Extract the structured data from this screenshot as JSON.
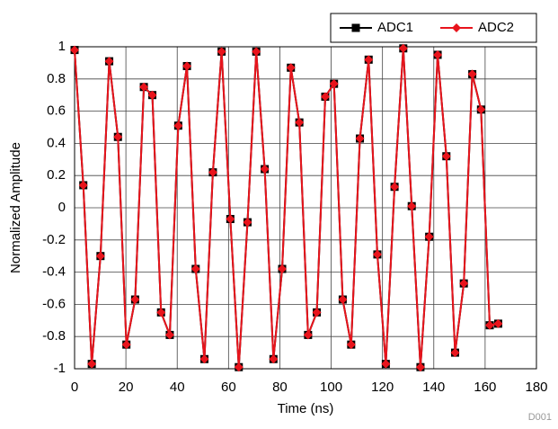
{
  "chart_data": {
    "type": "line",
    "x_label": "Time (ns)",
    "y_label": "Normalized Amplitude",
    "note": "D001",
    "x": [
      0,
      3.4,
      6.7,
      10.1,
      13.5,
      16.9,
      20.2,
      23.6,
      27.0,
      30.3,
      33.7,
      37.1,
      40.4,
      43.8,
      47.2,
      50.6,
      53.9,
      57.3,
      60.7,
      64.0,
      67.4,
      70.8,
      74.1,
      77.5,
      80.9,
      84.3,
      87.6,
      91.0,
      94.4,
      97.7,
      101.1,
      104.5,
      107.8,
      111.2,
      114.6,
      118.0,
      121.3,
      124.7,
      128.1,
      131.4,
      134.8,
      138.2,
      141.5,
      144.9,
      148.3,
      151.7,
      155.0,
      158.4,
      161.8,
      165.1
    ],
    "series": [
      {
        "name": "ADC1",
        "color": "#000000",
        "marker": "square",
        "values": [
          0.98,
          0.14,
          -0.97,
          -0.3,
          0.91,
          0.44,
          -0.85,
          -0.57,
          0.75,
          0.7,
          -0.65,
          -0.79,
          0.51,
          0.88,
          -0.38,
          -0.94,
          0.22,
          0.97,
          -0.07,
          -0.99,
          -0.09,
          0.97,
          0.24,
          -0.94,
          -0.38,
          0.87,
          0.53,
          -0.79,
          -0.65,
          0.69,
          0.77,
          -0.57,
          -0.85,
          0.43,
          0.92,
          -0.29,
          -0.97,
          0.13,
          0.99,
          0.01,
          -0.99,
          -0.18,
          0.95,
          0.32,
          -0.9,
          -0.47,
          0.83,
          0.61,
          -0.73,
          -0.72
        ]
      },
      {
        "name": "ADC2",
        "color": "#e8141c",
        "marker": "diamond",
        "values": [
          0.98,
          0.14,
          -0.97,
          -0.3,
          0.91,
          0.44,
          -0.85,
          -0.57,
          0.75,
          0.7,
          -0.65,
          -0.79,
          0.51,
          0.88,
          -0.38,
          -0.94,
          0.22,
          0.97,
          -0.07,
          -0.99,
          -0.09,
          0.97,
          0.24,
          -0.94,
          -0.38,
          0.87,
          0.53,
          -0.79,
          -0.65,
          0.69,
          0.77,
          -0.57,
          -0.85,
          0.43,
          0.92,
          -0.29,
          -0.97,
          0.13,
          0.99,
          0.01,
          -0.99,
          -0.18,
          0.95,
          0.32,
          -0.9,
          -0.47,
          0.83,
          0.61,
          -0.73,
          -0.72
        ]
      }
    ],
    "xlim": [
      0,
      180
    ],
    "xticks": [
      0,
      20,
      40,
      60,
      80,
      100,
      120,
      140,
      160,
      180
    ],
    "ylim": [
      -1,
      1
    ],
    "yticks": [
      -1,
      -0.8,
      -0.6,
      -0.4,
      -0.2,
      0,
      0.2,
      0.4,
      0.6,
      0.8,
      1
    ],
    "grid": true,
    "legend": "top-right"
  }
}
